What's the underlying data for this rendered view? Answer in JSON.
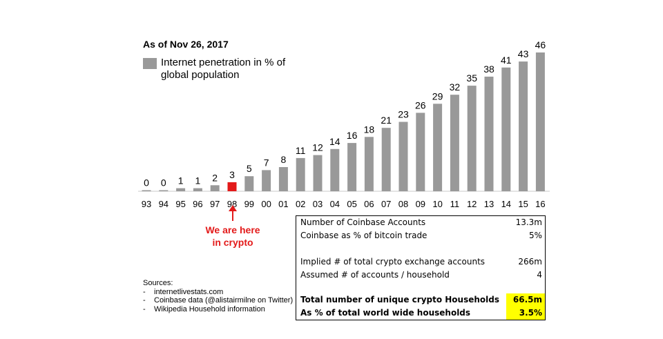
{
  "header": {
    "date": "As of Nov  26, 2017"
  },
  "legend": {
    "label": "Internet penetration in % of global population"
  },
  "chart_data": {
    "type": "bar",
    "title": "Internet penetration in % of global population",
    "categories": [
      "93",
      "94",
      "95",
      "96",
      "97",
      "98",
      "99",
      "00",
      "01",
      "02",
      "03",
      "04",
      "05",
      "06",
      "07",
      "08",
      "09",
      "10",
      "11",
      "12",
      "13",
      "14",
      "15",
      "16"
    ],
    "values": [
      0,
      0,
      1,
      1,
      2,
      3,
      5,
      7,
      8,
      11,
      12,
      14,
      16,
      18,
      21,
      23,
      26,
      29,
      32,
      35,
      38,
      41,
      43,
      46
    ],
    "highlight_category": "98",
    "bar_color": "#999999",
    "highlight_color": "#e31a1a",
    "ylim": [
      0,
      46
    ],
    "xlabel": "",
    "ylabel": ""
  },
  "annotation": {
    "text_line1": "We are here",
    "text_line2": "in crypto"
  },
  "sources": {
    "title": "Sources:",
    "items": [
      "internetlivestats.com",
      "Coinbase data (@alistairmilne on Twitter)",
      "Wikipedia Household information"
    ]
  },
  "stats": {
    "rows": [
      {
        "label": "Number of Coinbase Accounts",
        "value": "13.3m",
        "bold": false,
        "highlight": false
      },
      {
        "label": "Coinbase as % of bitcoin trade",
        "value": "5%",
        "bold": false,
        "highlight": false
      },
      {
        "label": "Implied # of total crypto exchange accounts",
        "value": "266m",
        "bold": false,
        "highlight": false
      },
      {
        "label": "Assumed # of accounts / household",
        "value": "4",
        "bold": false,
        "highlight": false
      },
      {
        "label": "Total number of unique crypto Households",
        "value": "66.5m",
        "bold": true,
        "highlight": true
      },
      {
        "label": "As % of total world wide households",
        "value": "3.5%",
        "bold": true,
        "highlight": true
      }
    ],
    "highlight_color": "#ffff00"
  }
}
